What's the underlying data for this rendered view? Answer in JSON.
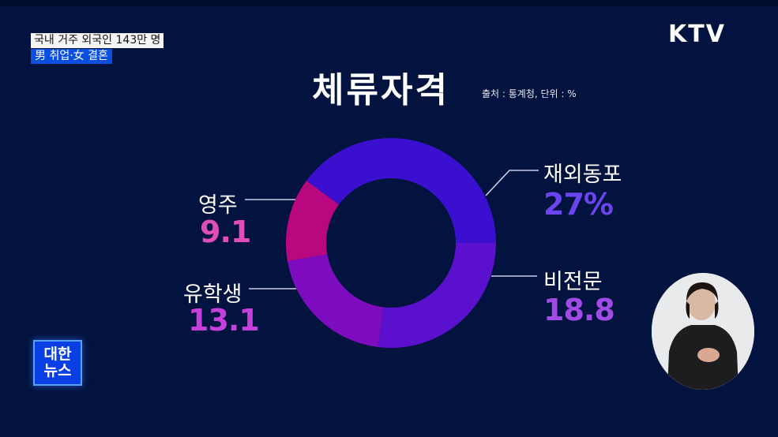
{
  "broadcast": {
    "channel_logo": "KTV",
    "program_logo_line1": "대한",
    "program_logo_line2": "뉴스",
    "ticker_headline": "국내 거주 외국인 143만 명",
    "ticker_subheadline": "男 취업·女 결혼"
  },
  "colors": {
    "background": "#03133f",
    "ticker_sub_bg": "#0a4fe0"
  },
  "chart_data": {
    "type": "pie",
    "style": "donut",
    "title": "체류자격",
    "source_note": "출처 : 통계청, 단위 : %",
    "unit": "%",
    "categories": [
      "재외동포",
      "비전문",
      "유학생",
      "영주"
    ],
    "values": [
      27,
      18.8,
      13.1,
      9.1
    ],
    "value_labels": [
      "27%",
      "18.8",
      "13.1",
      "9.1"
    ],
    "segment_colors": [
      "#3a0fd0",
      "#5a10cc",
      "#7e0cbf",
      "#b8077f"
    ],
    "label_colors": [
      "#6a45ee",
      "#a04be6",
      "#c53fdc",
      "#e04cb8"
    ],
    "drawn_angles_deg_clockwise_from_east": [
      [
        216.4,
        360
      ],
      [
        0,
        97
      ],
      [
        97,
        170
      ],
      [
        170,
        216.4
      ]
    ]
  },
  "interpreter": {
    "description": "sign-language-interpreter"
  }
}
